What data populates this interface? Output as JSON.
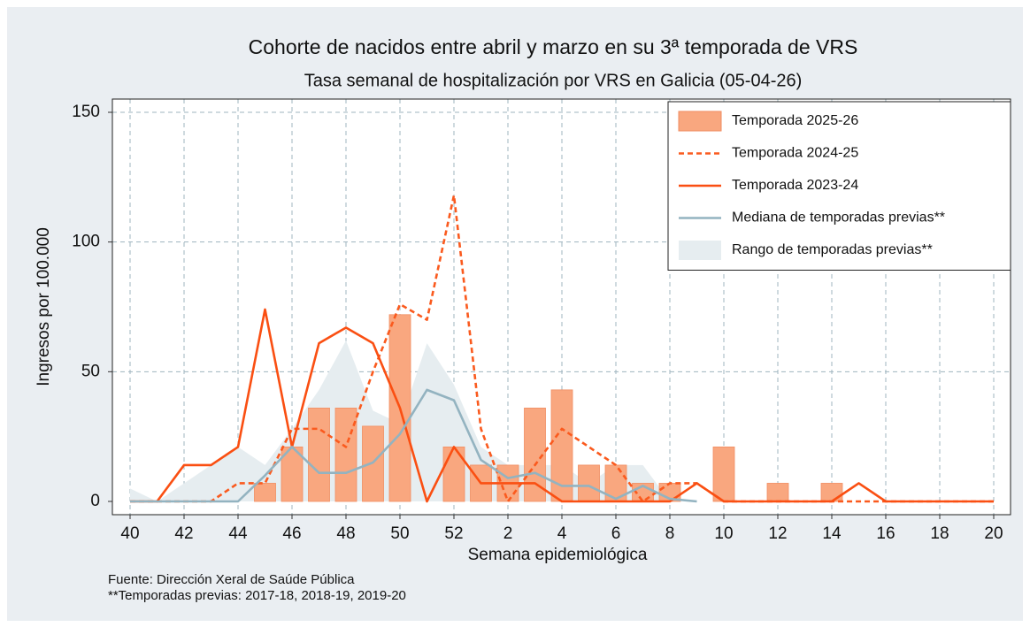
{
  "chart_data": {
    "type": "bar",
    "title": "Cohorte de nacidos entre abril y marzo en su 3ª temporada de VRS",
    "subtitle": "Tasa semanal de hospitalización por VRS en Galicia (05-04-26)",
    "x_label": "Semana epidemiológica",
    "y_label": "Ingresos por 100.000",
    "categories": [
      40,
      null,
      42,
      null,
      44,
      null,
      46,
      null,
      48,
      null,
      50,
      null,
      52,
      null,
      2,
      null,
      4,
      null,
      6,
      null,
      8,
      null,
      10,
      null,
      12,
      null,
      14,
      null,
      16,
      null,
      18,
      null,
      20
    ],
    "ylim": [
      0,
      150
    ],
    "yticks": [
      0,
      50,
      100,
      150
    ],
    "grid": true,
    "legend": "upper right",
    "series": [
      {
        "name": "Temporada 2025-26",
        "type": "bar",
        "color": "#f9a77f",
        "values": [
          0,
          0,
          0,
          0,
          0,
          7,
          21,
          36,
          36,
          29,
          72,
          0,
          21,
          14,
          14,
          36,
          43,
          14,
          14,
          7,
          7,
          0,
          21,
          0,
          7,
          0,
          7,
          0,
          0,
          0,
          0,
          0,
          0
        ]
      },
      {
        "name": "Temporada 2024-25",
        "type": "line",
        "dash": true,
        "color": "#fa5a1e",
        "values": [
          0,
          0,
          0,
          0,
          7,
          7,
          28,
          28,
          21,
          50,
          76,
          70,
          118,
          28,
          0,
          14,
          28,
          21,
          14,
          0,
          7,
          7,
          0,
          0,
          0,
          0,
          0,
          0,
          0,
          0,
          0,
          0,
          0
        ]
      },
      {
        "name": "Temporada 2023-24",
        "type": "line",
        "color": "#fa4f12",
        "values": [
          0,
          0,
          14,
          14,
          21,
          74,
          21,
          61,
          67,
          61,
          36,
          0,
          21,
          7,
          7,
          7,
          0,
          0,
          0,
          0,
          0,
          7,
          0,
          0,
          0,
          0,
          0,
          7,
          0,
          0,
          0,
          0,
          0
        ]
      },
      {
        "name": "Mediana de temporadas previas**",
        "type": "line",
        "color": "#93b3c0",
        "values": [
          0,
          0,
          0,
          0,
          0,
          10,
          21,
          11,
          11,
          15,
          26,
          43,
          39,
          16,
          9,
          11,
          6,
          6,
          1,
          6,
          1,
          0,
          null,
          null,
          null,
          null,
          null,
          null,
          null,
          null,
          null,
          null,
          null
        ]
      },
      {
        "name": "Rango de temporadas previas**",
        "type": "area",
        "color": "#e6edf0",
        "values": [
          5,
          0,
          7,
          14,
          21,
          14,
          28,
          43,
          62,
          35,
          30,
          61,
          45,
          21,
          14,
          14,
          14,
          7,
          14,
          14,
          0,
          0,
          0,
          0,
          0,
          0,
          0,
          0,
          0,
          0,
          0,
          0,
          0
        ]
      }
    ],
    "notes": [
      "Fuente: Dirección Xeral de Saúde Pública",
      "**Temporadas previas: 2017-18, 2018-19, 2019-20"
    ]
  }
}
